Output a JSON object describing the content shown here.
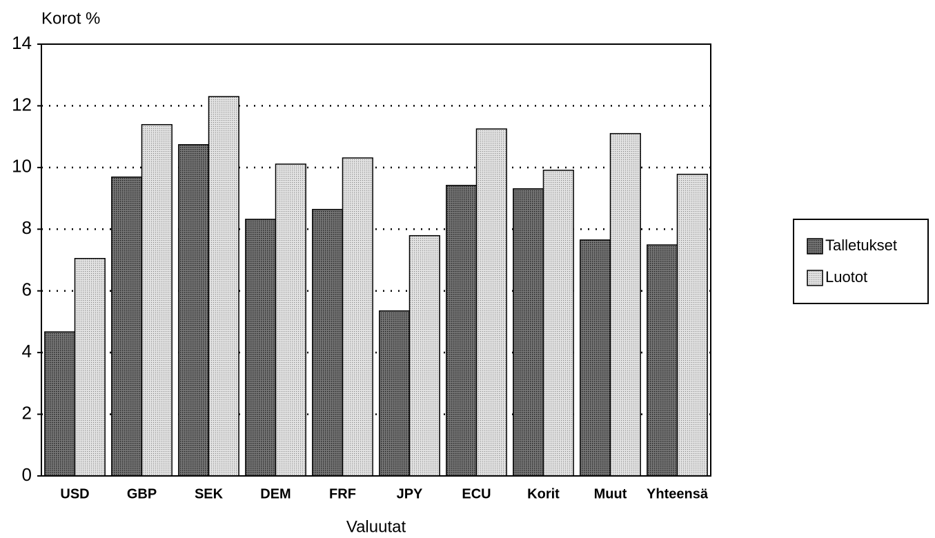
{
  "chart_data": {
    "type": "bar",
    "y_axis_label": "Korot %",
    "x_axis_label": "Valuutat",
    "categories": [
      "USD",
      "GBP",
      "SEK",
      "DEM",
      "FRF",
      "JPY",
      "ECU",
      "Korit",
      "Muut",
      "Yhteensä"
    ],
    "series": [
      {
        "name": "Talletukset",
        "color": "#5a5a5a",
        "values": [
          4.67,
          9.69,
          10.74,
          8.32,
          8.64,
          5.35,
          9.42,
          9.31,
          7.65,
          7.49
        ]
      },
      {
        "name": "Luotot",
        "color": "#cfcfcf",
        "values": [
          7.05,
          11.39,
          12.3,
          10.11,
          10.31,
          7.79,
          11.25,
          9.91,
          11.1,
          9.78
        ]
      }
    ],
    "ylim": [
      0,
      14
    ],
    "yticks": [
      0,
      2,
      4,
      6,
      8,
      10,
      12,
      14
    ],
    "grid": true,
    "legend": "right"
  }
}
